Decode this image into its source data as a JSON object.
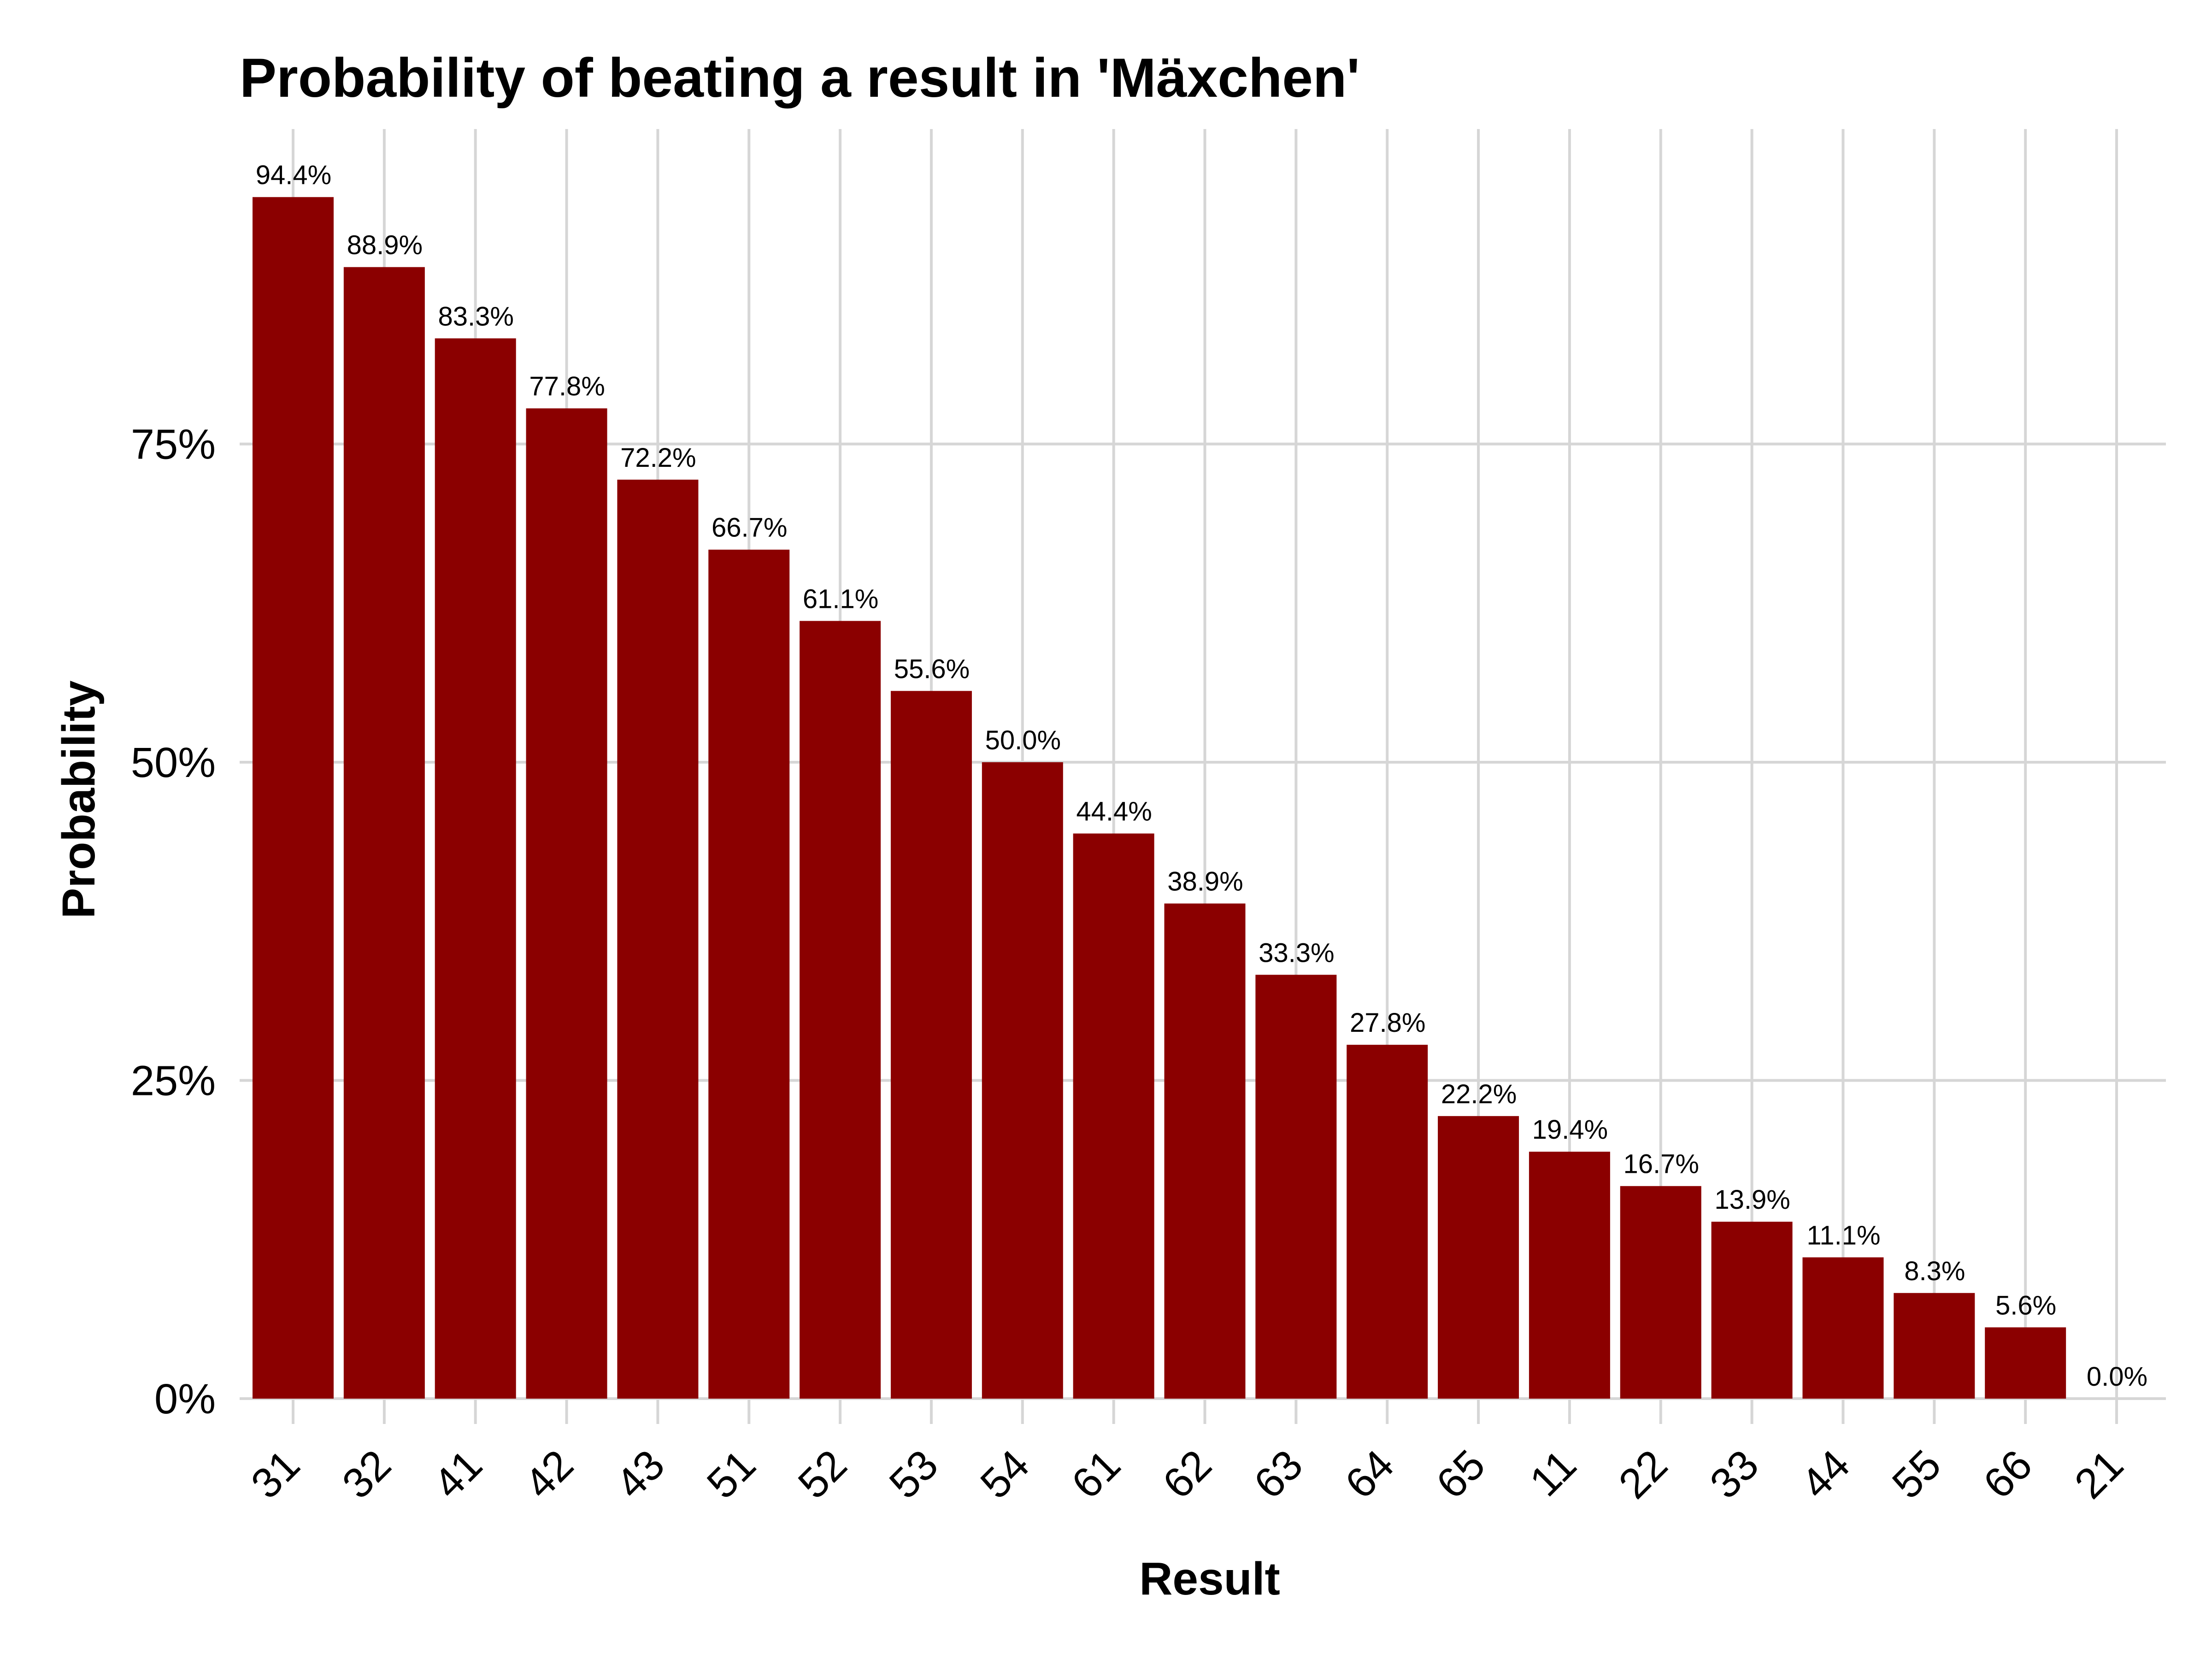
{
  "chart_data": {
    "type": "bar",
    "title": "Probability of beating a result in 'Mäxchen'",
    "xlabel": "Result",
    "ylabel": "Probability",
    "categories": [
      "31",
      "32",
      "41",
      "42",
      "43",
      "51",
      "52",
      "53",
      "54",
      "61",
      "62",
      "63",
      "64",
      "65",
      "11",
      "22",
      "33",
      "44",
      "55",
      "66",
      "21"
    ],
    "values": [
      94.4,
      88.9,
      83.3,
      77.8,
      72.2,
      66.7,
      61.1,
      55.6,
      50.0,
      44.4,
      38.9,
      33.3,
      27.8,
      22.2,
      19.4,
      16.7,
      13.9,
      11.1,
      8.3,
      5.6,
      0.0
    ],
    "data_labels": [
      "94.4%",
      "88.9%",
      "83.3%",
      "77.8%",
      "72.2%",
      "66.7%",
      "61.1%",
      "55.6%",
      "50.0%",
      "44.4%",
      "38.9%",
      "33.3%",
      "27.8%",
      "22.2%",
      "19.4%",
      "16.7%",
      "13.9%",
      "11.1%",
      "8.3%",
      "5.6%",
      "0.0%"
    ],
    "y_ticks": [
      0,
      25,
      50,
      75
    ],
    "y_tick_labels": [
      "0%",
      "25%",
      "50%",
      "75%"
    ],
    "ylim": [
      0,
      100
    ],
    "grid": true,
    "legend": "none",
    "bar_color": "#8b0000",
    "grid_color": "#d6d6d6"
  }
}
